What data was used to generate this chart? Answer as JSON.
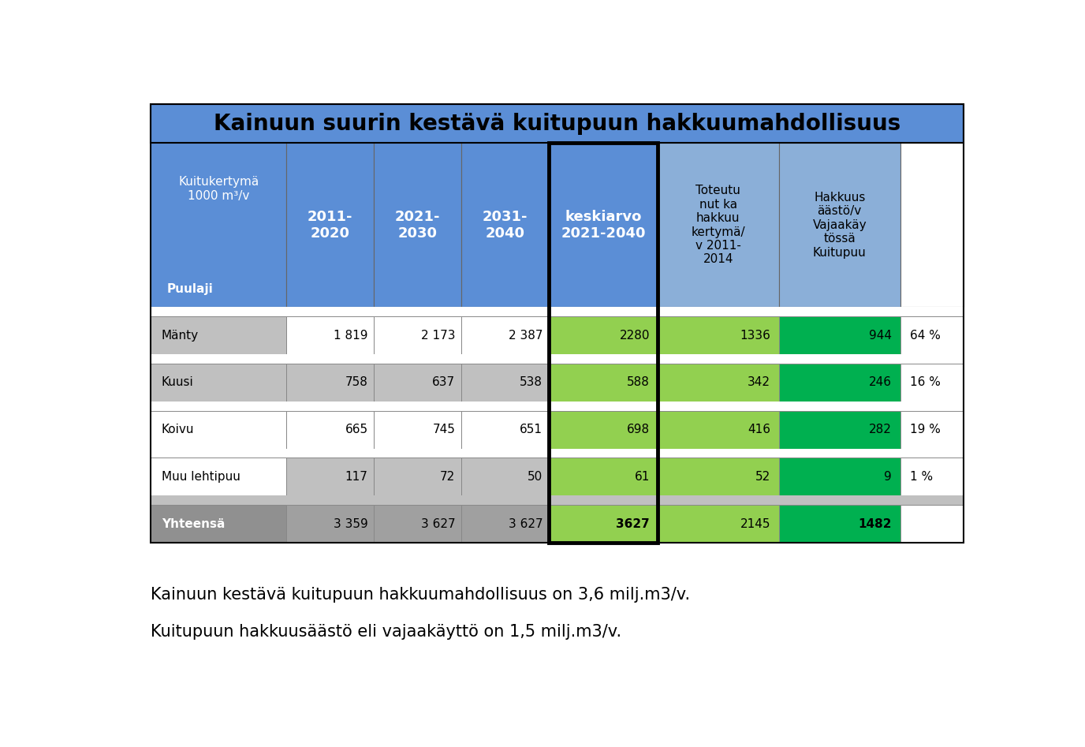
{
  "title": "Kainuun suurin kestävä kuitupuun hakkuumahdollisuus",
  "blue": "#5B8ED6",
  "light_blue": "#8BAFD8",
  "light_green": "#92D050",
  "dark_green": "#00B050",
  "gray_name": "#909090",
  "light_gray": "#C0C0C0",
  "mid_gray": "#A0A0A0",
  "white": "#FFFFFF",
  "col_headers_line1": [
    "Kuitukertymä",
    "2011-",
    "2021-",
    "2031-",
    "keskiarvo",
    "Toteutu",
    "Hakkuus",
    ""
  ],
  "col_headers_line2": [
    "1000 m³/v",
    "2020",
    "2030",
    "2040",
    "2021-2040",
    "nut ka",
    "äästö/v",
    ""
  ],
  "col_headers_extra": [
    "",
    "",
    "",
    "",
    "",
    "hakkuu",
    "Vajaakäy",
    ""
  ],
  "col_headers_extra2": [
    "",
    "",
    "",
    "",
    "",
    "kertymä/",
    "tössä",
    ""
  ],
  "col_headers_extra3": [
    "",
    "",
    "",
    "",
    "",
    "v 2011-",
    "Kuitupuu",
    ""
  ],
  "col_headers_extra4": [
    "",
    "",
    "",
    "",
    "",
    "2014",
    "",
    ""
  ],
  "puulaji": "Puulaji",
  "row_names": [
    "Mänty",
    "Kuusi",
    "Koivu",
    "Muu lehtipuu",
    "Yhteensä"
  ],
  "row_values": [
    [
      "1 819",
      "2 173",
      "2 387",
      "2280",
      "1336",
      "944",
      "64 %"
    ],
    [
      "758",
      "637",
      "538",
      "588",
      "342",
      "246",
      "16 %"
    ],
    [
      "665",
      "745",
      "651",
      "698",
      "416",
      "282",
      "19 %"
    ],
    [
      "117",
      "72",
      "50",
      "61",
      "52",
      "9",
      "1 %"
    ],
    [
      "3 359",
      "3 627",
      "3 627",
      "3627",
      "2145",
      "1482",
      ""
    ]
  ],
  "footer_lines": [
    "Kainuun kestävä kuitupuun hakkuumahdollisuus on 3,6 milj.m3/v.",
    "Kuitupuun hakkuusäästö eli vajaakäyttö on 1,5 milj.m3/v."
  ]
}
